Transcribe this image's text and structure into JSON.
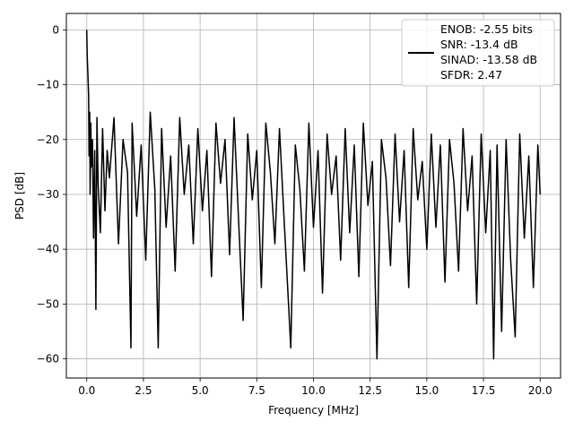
{
  "chart_data": {
    "type": "line",
    "xlabel": "Frequency [MHz]",
    "ylabel": "PSD [dB]",
    "xlim": [
      -0.9,
      20.9
    ],
    "ylim": [
      -63.5,
      3.0
    ],
    "grid": true,
    "legend_position": "top-right",
    "x_ticks": [
      0.0,
      2.5,
      5.0,
      7.5,
      10.0,
      12.5,
      15.0,
      17.5,
      20.0
    ],
    "x_tick_labels": [
      "0.0",
      "2.5",
      "5.0",
      "7.5",
      "10.0",
      "12.5",
      "15.0",
      "17.5",
      "20.0"
    ],
    "y_ticks": [
      0,
      -10,
      -20,
      -30,
      -40,
      -50,
      -60
    ],
    "y_tick_labels": [
      "0",
      "−10",
      "−20",
      "−30",
      "−40",
      "−50",
      "−60"
    ],
    "legend_lines": [
      "ENOB: -2.55 bits",
      "SNR: -13.4 dB",
      "SINAD: -13.58 dB",
      "SFDR: 2.47"
    ],
    "series": [
      {
        "color": "#000000",
        "x": [
          0.0,
          0.02,
          0.05,
          0.08,
          0.1,
          0.13,
          0.15,
          0.18,
          0.2,
          0.25,
          0.3,
          0.35,
          0.4,
          0.45,
          0.5,
          0.6,
          0.7,
          0.8,
          0.9,
          1.0,
          1.2,
          1.4,
          1.6,
          1.8,
          1.95,
          2.0,
          2.2,
          2.4,
          2.6,
          2.8,
          3.0,
          3.15,
          3.3,
          3.5,
          3.7,
          3.9,
          4.1,
          4.3,
          4.5,
          4.7,
          4.9,
          5.1,
          5.3,
          5.5,
          5.7,
          5.9,
          6.1,
          6.3,
          6.5,
          6.7,
          6.9,
          7.1,
          7.3,
          7.5,
          7.7,
          7.9,
          8.1,
          8.3,
          8.5,
          8.7,
          8.9,
          9.0,
          9.2,
          9.4,
          9.6,
          9.8,
          10.0,
          10.2,
          10.4,
          10.6,
          10.8,
          11.0,
          11.2,
          11.4,
          11.6,
          11.8,
          12.0,
          12.2,
          12.4,
          12.6,
          12.8,
          13.0,
          13.2,
          13.4,
          13.6,
          13.8,
          14.0,
          14.2,
          14.4,
          14.6,
          14.8,
          15.0,
          15.2,
          15.4,
          15.6,
          15.8,
          16.0,
          16.2,
          16.4,
          16.6,
          16.8,
          17.0,
          17.2,
          17.4,
          17.6,
          17.8,
          17.95,
          18.1,
          18.3,
          18.5,
          18.7,
          18.9,
          19.1,
          19.3,
          19.5,
          19.7,
          19.9,
          20.0
        ],
        "y": [
          0,
          -5,
          -8,
          -12,
          -23,
          -15,
          -30,
          -17,
          -25,
          -20,
          -38,
          -22,
          -51,
          -16,
          -28,
          -37,
          -18,
          -33,
          -22,
          -27,
          -16,
          -39,
          -20,
          -26,
          -58,
          -17,
          -34,
          -21,
          -42,
          -15,
          -29,
          -58,
          -18,
          -36,
          -23,
          -44,
          -16,
          -30,
          -21,
          -39,
          -18,
          -33,
          -22,
          -45,
          -17,
          -28,
          -20,
          -41,
          -16,
          -35,
          -53,
          -19,
          -31,
          -22,
          -47,
          -17,
          -26,
          -39,
          -18,
          -34,
          -50,
          -58,
          -21,
          -29,
          -44,
          -17,
          -36,
          -22,
          -48,
          -19,
          -30,
          -23,
          -42,
          -18,
          -37,
          -21,
          -45,
          -17,
          -32,
          -24,
          -60,
          -20,
          -27,
          -43,
          -19,
          -35,
          -22,
          -47,
          -18,
          -31,
          -24,
          -40,
          -19,
          -36,
          -21,
          -46,
          -20,
          -28,
          -44,
          -18,
          -33,
          -23,
          -50,
          -19,
          -37,
          -22,
          -60,
          -21,
          -55,
          -20,
          -42,
          -56,
          -19,
          -38,
          -23,
          -47,
          -21,
          -30
        ]
      }
    ]
  }
}
